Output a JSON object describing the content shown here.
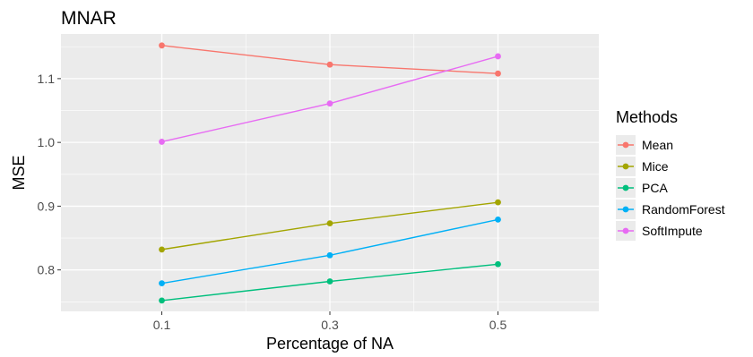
{
  "chart_data": {
    "type": "line",
    "title": "MNAR",
    "xlabel": "Percentage of NA",
    "ylabel": "MSE",
    "x": [
      0.1,
      0.3,
      0.5
    ],
    "x_tick_labels": [
      "0.1",
      "0.3",
      "0.5"
    ],
    "xlim": [
      -0.02,
      0.62
    ],
    "y_ticks": [
      0.8,
      0.9,
      1.0,
      1.1
    ],
    "y_tick_labels": [
      "0.8",
      "0.9",
      "1.0",
      "1.1"
    ],
    "ylim": [
      0.735,
      1.17
    ],
    "grid": true,
    "legend": {
      "title": "Methods",
      "position": "right"
    },
    "series": [
      {
        "name": "Mean",
        "color": "#F8766D",
        "values": [
          1.152,
          1.122,
          1.108
        ]
      },
      {
        "name": "Mice",
        "color": "#A3A500",
        "values": [
          0.832,
          0.873,
          0.906
        ]
      },
      {
        "name": "PCA",
        "color": "#00BF7D",
        "values": [
          0.752,
          0.782,
          0.809
        ]
      },
      {
        "name": "RandomForest",
        "color": "#00B0F6",
        "values": [
          0.779,
          0.823,
          0.879
        ]
      },
      {
        "name": "SoftImpute",
        "color": "#E76BF3",
        "values": [
          1.001,
          1.061,
          1.135
        ]
      }
    ]
  }
}
